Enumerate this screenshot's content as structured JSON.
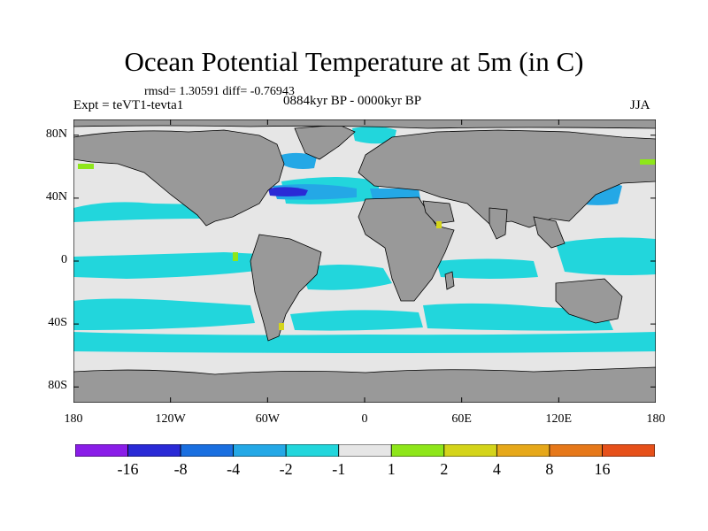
{
  "title": "Ocean Potential Temperature at 5m (in C)",
  "stats_text": "rmsd= 1.30591 diff= -0.76943",
  "period_text": "0884kyr BP - 0000kyr BP",
  "experiment_text": "Expt = teVT1-tevta1",
  "season_text": "JJA",
  "lat_ticks": [
    {
      "lat": 80,
      "label": "80N"
    },
    {
      "lat": 40,
      "label": "40N"
    },
    {
      "lat": 0,
      "label": "0"
    },
    {
      "lat": -40,
      "label": "40S"
    },
    {
      "lat": -80,
      "label": "80S"
    }
  ],
  "lon_ticks": [
    {
      "lon": -180,
      "label": "180"
    },
    {
      "lon": -120,
      "label": "120W"
    },
    {
      "lon": -60,
      "label": "60W"
    },
    {
      "lon": 0,
      "label": "0"
    },
    {
      "lon": 60,
      "label": "60E"
    },
    {
      "lon": 120,
      "label": "120E"
    },
    {
      "lon": 180,
      "label": "180"
    }
  ],
  "colorbar": {
    "colors": [
      "#8a1de8",
      "#2a2ad6",
      "#1a6fe0",
      "#24a8e6",
      "#22d6dc",
      "#e6e6e6",
      "#8ee61a",
      "#d4d41a",
      "#e6a81a",
      "#e6781a",
      "#e6501a"
    ],
    "labels": [
      "-16",
      "-8",
      "-4",
      "-2",
      "-1",
      "1",
      "2",
      "4",
      "8",
      "16"
    ]
  },
  "palette": {
    "land": "#999999",
    "no_change": "#e6e6e6",
    "cool_1": "#22d6dc",
    "cool_2": "#24a8e6",
    "cool_4": "#1a6fe0",
    "cool_8": "#2a2ad6",
    "warm_1": "#8ee61a",
    "warm_2": "#d4d41a"
  }
}
